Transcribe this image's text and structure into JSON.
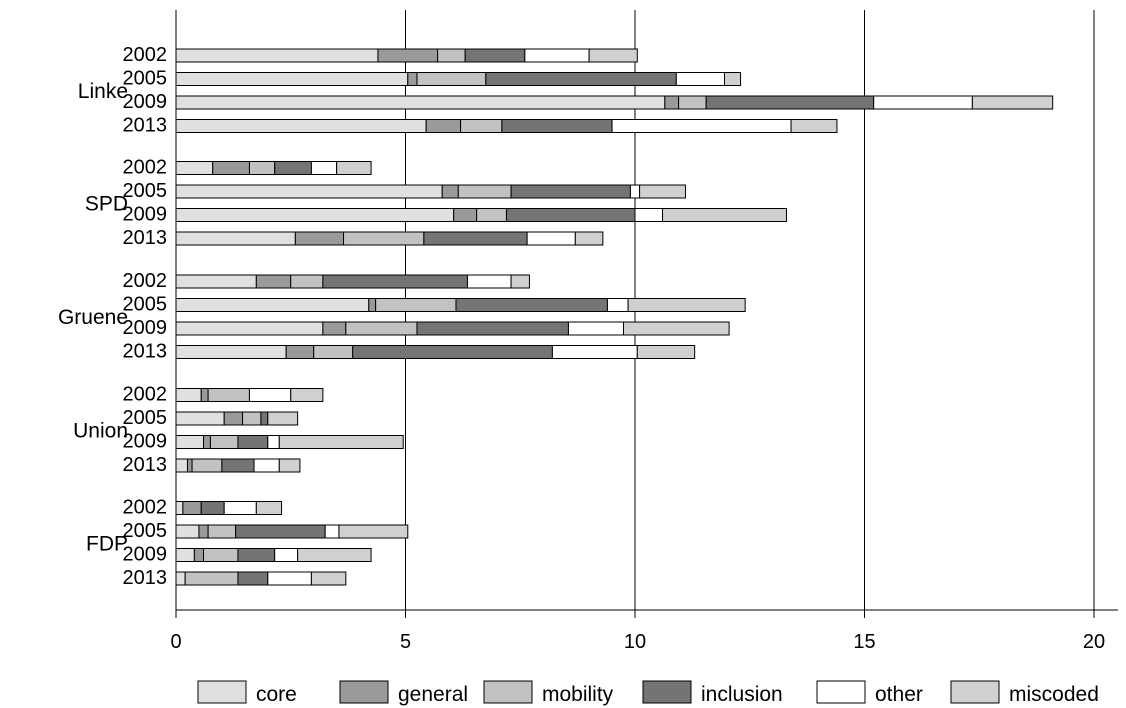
{
  "chart_data": {
    "type": "bar",
    "orientation": "horizontal",
    "stacked": true,
    "xlim": [
      0,
      20
    ],
    "x_ticks": [
      "0",
      "5",
      "10",
      "15",
      "20"
    ],
    "grid": "vertical",
    "legend_position": "bottom",
    "groups": [
      {
        "label": "Linke",
        "years": [
          "2002",
          "2005",
          "2009",
          "2013"
        ],
        "values": [
          [
            4.4,
            1.3,
            0.6,
            1.3,
            1.4,
            1.05
          ],
          [
            5.05,
            0.2,
            1.5,
            4.15,
            1.05,
            0.35
          ],
          [
            10.65,
            0.3,
            0.6,
            3.65,
            2.15,
            1.75
          ],
          [
            5.45,
            0.75,
            0.9,
            2.4,
            3.9,
            1.0
          ]
        ]
      },
      {
        "label": "SPD",
        "years": [
          "2002",
          "2005",
          "2009",
          "2013"
        ],
        "values": [
          [
            0.8,
            0.8,
            0.55,
            0.8,
            0.55,
            0.75
          ],
          [
            5.8,
            0.35,
            1.15,
            2.6,
            0.2,
            1.0
          ],
          [
            6.05,
            0.5,
            0.65,
            2.8,
            0.6,
            2.7
          ],
          [
            2.6,
            1.05,
            1.75,
            2.25,
            1.05,
            0.6
          ]
        ]
      },
      {
        "label": "Gruene",
        "years": [
          "2002",
          "2005",
          "2009",
          "2013"
        ],
        "values": [
          [
            1.75,
            0.75,
            0.7,
            3.15,
            0.95,
            0.4
          ],
          [
            4.2,
            0.15,
            1.75,
            3.3,
            0.45,
            2.55
          ],
          [
            3.2,
            0.5,
            1.55,
            3.3,
            1.2,
            2.3
          ],
          [
            2.4,
            0.6,
            0.85,
            4.35,
            1.85,
            1.25
          ]
        ]
      },
      {
        "label": "Union",
        "years": [
          "2002",
          "2005",
          "2009",
          "2013"
        ],
        "values": [
          [
            0.55,
            0.15,
            0.9,
            0.0,
            0.9,
            0.7
          ],
          [
            1.05,
            0.4,
            0.4,
            0.15,
            0.0,
            0.65
          ],
          [
            0.6,
            0.15,
            0.6,
            0.65,
            0.25,
            2.7
          ],
          [
            0.25,
            0.1,
            0.65,
            0.7,
            0.55,
            0.45
          ]
        ]
      },
      {
        "label": "FDP",
        "years": [
          "2002",
          "2005",
          "2009",
          "2013"
        ],
        "values": [
          [
            0.15,
            0.4,
            0.0,
            0.5,
            0.7,
            0.55
          ],
          [
            0.5,
            0.2,
            0.6,
            1.95,
            0.3,
            1.5
          ],
          [
            0.4,
            0.2,
            0.75,
            0.8,
            0.5,
            1.6
          ],
          [
            0.2,
            0.0,
            1.15,
            0.65,
            0.95,
            0.75
          ]
        ]
      }
    ],
    "series": [
      {
        "name": "core",
        "color": "#e0e0e0"
      },
      {
        "name": "general",
        "color": "#9a9a9a"
      },
      {
        "name": "mobility",
        "color": "#c2c2c2"
      },
      {
        "name": "inclusion",
        "color": "#747474"
      },
      {
        "name": "other",
        "color": "#ffffff"
      },
      {
        "name": "miscoded",
        "color": "#d0d0d0"
      }
    ]
  }
}
